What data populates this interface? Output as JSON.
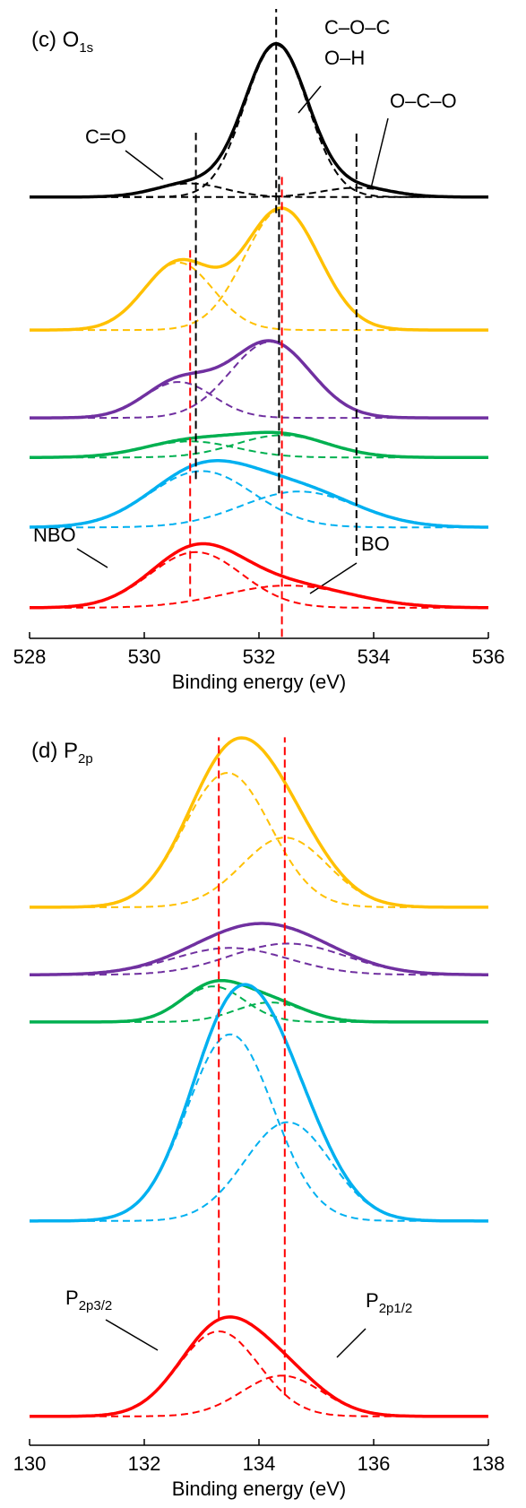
{
  "chart_data": [
    {
      "type": "xps",
      "title": {
        "main": "(c) O",
        "sub": "1s"
      },
      "x_label": "Binding energy (eV)",
      "xlim": [
        528,
        536
      ],
      "xticks": [
        528,
        530,
        532,
        534,
        536
      ],
      "ylim": [
        0,
        100
      ],
      "series": [
        {
          "color": "#000000",
          "baseline": 69.6,
          "peaks": [
            {
              "center": 532.3,
              "height": 24.6,
              "width": 0.55
            },
            {
              "center": 530.8,
              "height": 2.2,
              "width": 0.6
            },
            {
              "center": 533.7,
              "height": 1.5,
              "width": 0.6
            }
          ]
        },
        {
          "color": "#ffc000",
          "baseline": 48.1,
          "peaks": [
            {
              "center": 530.6,
              "height": 10.9,
              "width": 0.6
            },
            {
              "center": 532.4,
              "height": 19.6,
              "width": 0.65
            }
          ]
        },
        {
          "color": "#7030a0",
          "baseline": 33.9,
          "peaks": [
            {
              "center": 530.6,
              "height": 5.8,
              "width": 0.6
            },
            {
              "center": 532.2,
              "height": 12.3,
              "width": 0.7
            }
          ]
        },
        {
          "color": "#00b050",
          "baseline": 27.5,
          "peaks": [
            {
              "center": 530.8,
              "height": 2.6,
              "width": 0.8
            },
            {
              "center": 532.4,
              "height": 3.6,
              "width": 0.8
            }
          ]
        },
        {
          "color": "#00b0f0",
          "baseline": 16.2,
          "peaks": [
            {
              "center": 531.0,
              "height": 9.1,
              "width": 0.9
            },
            {
              "center": 532.7,
              "height": 5.8,
              "width": 1.0
            }
          ]
        },
        {
          "color": "#ff0000",
          "baseline": 3.2,
          "peaks": [
            {
              "center": 530.9,
              "height": 9.0,
              "width": 0.8
            },
            {
              "center": 532.5,
              "height": 3.6,
              "width": 1.1
            }
          ]
        }
      ],
      "reference_lines": [
        {
          "x": 532.3,
          "color": "#000000",
          "span": [
            67,
            100
          ]
        },
        {
          "x": 530.9,
          "color": "#000000",
          "span": [
            24,
            80
          ]
        },
        {
          "x": 533.7,
          "color": "#000000",
          "span": [
            11.6,
            80
          ]
        },
        {
          "x": 532.35,
          "color": "#000000",
          "span": [
            21.7,
            73
          ]
        },
        {
          "x": 530.8,
          "color": "#ff0000",
          "span": [
            5,
            61
          ]
        },
        {
          "x": 532.4,
          "color": "#ff0000",
          "span": [
            -1.5,
            73
          ]
        }
      ],
      "annotations": [
        "C=O",
        "C–O–C",
        "O–H",
        "O–C–O",
        "NBO",
        "BO"
      ]
    },
    {
      "type": "xps",
      "title": {
        "main": "(d) P",
        "sub": "2p"
      },
      "x_label": "Binding energy (eV)",
      "xlim": [
        130,
        138
      ],
      "xticks": [
        130,
        132,
        134,
        136,
        138
      ],
      "ylim": [
        0,
        100
      ],
      "series": [
        {
          "color": "#ffc000",
          "baseline": 72.6,
          "peaks": [
            {
              "center": 133.45,
              "height": 18.5,
              "width": 0.75
            },
            {
              "center": 134.45,
              "height": 9.6,
              "width": 0.75
            }
          ]
        },
        {
          "color": "#7030a0",
          "baseline": 63.3,
          "peaks": [
            {
              "center": 133.5,
              "height": 3.7,
              "width": 1.0
            },
            {
              "center": 134.5,
              "height": 4.3,
              "width": 1.0
            }
          ]
        },
        {
          "color": "#00b050",
          "baseline": 56.8,
          "peaks": [
            {
              "center": 133.2,
              "height": 4.9,
              "width": 0.55
            },
            {
              "center": 134.2,
              "height": 2.7,
              "width": 0.6
            }
          ]
        },
        {
          "color": "#00b0f0",
          "baseline": 29.4,
          "peaks": [
            {
              "center": 133.5,
              "height": 25.7,
              "width": 0.75
            },
            {
              "center": 134.5,
              "height": 13.6,
              "width": 0.75
            }
          ]
        },
        {
          "color": "#ff0000",
          "baseline": 2.5,
          "peaks": [
            {
              "center": 133.3,
              "height": 11.7,
              "width": 0.7
            },
            {
              "center": 134.4,
              "height": 5.6,
              "width": 0.7
            }
          ]
        }
      ],
      "reference_lines": [
        {
          "x": 133.3,
          "color": "#ff0000",
          "span": [
            16,
            96
          ]
        },
        {
          "x": 134.45,
          "color": "#ff0000",
          "span": [
            5.4,
            96
          ]
        }
      ],
      "annotations": [
        {
          "main": "P",
          "sub": "2p3/2"
        },
        {
          "main": "P",
          "sub": "2p1/2"
        }
      ]
    }
  ]
}
